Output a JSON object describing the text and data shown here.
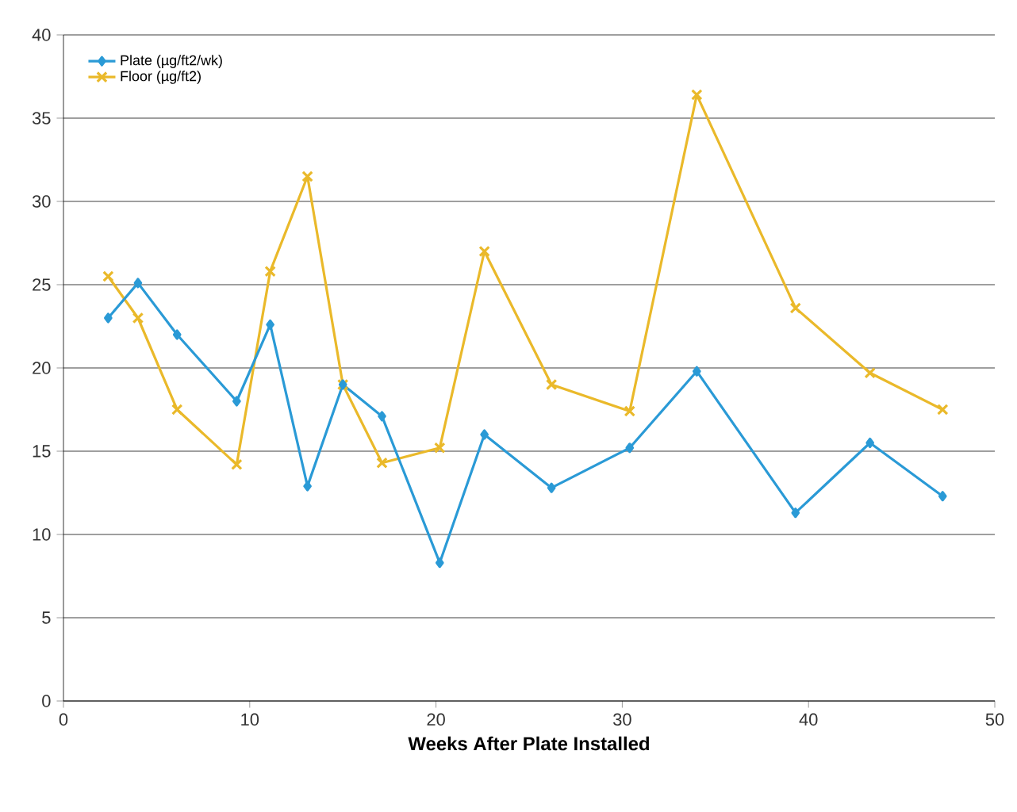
{
  "chart_data": {
    "type": "line",
    "xlabel": "Weeks  After Plate Installed",
    "xlim": [
      0,
      50
    ],
    "xticks": [
      0,
      10,
      20,
      30,
      40,
      50
    ],
    "ylim": [
      0,
      40
    ],
    "yticks": [
      0,
      5,
      10,
      15,
      20,
      25,
      30,
      35,
      40
    ],
    "grid": "y",
    "legend": "top left",
    "series": [
      {
        "name": "Plate (µg/ft2/wk)",
        "color": "#2a9ad6",
        "marker": "diamond",
        "x": [
          2.4,
          4.0,
          6.1,
          9.3,
          11.1,
          13.1,
          15.0,
          17.1,
          20.2,
          22.6,
          26.2,
          30.4,
          34.0,
          39.3,
          43.3,
          47.2
        ],
        "values": [
          23,
          25.1,
          22,
          18,
          22.6,
          12.9,
          19,
          17.1,
          8.3,
          16,
          12.8,
          15.2,
          19.8,
          11.3,
          15.5,
          12.3
        ]
      },
      {
        "name": "Floor (µg/ft2)",
        "color": "#eab92a",
        "marker": "cross",
        "x": [
          2.4,
          4.0,
          6.1,
          9.3,
          11.1,
          13.1,
          15.0,
          17.1,
          20.2,
          22.6,
          26.2,
          30.4,
          34.0,
          39.3,
          43.3,
          47.2
        ],
        "values": [
          25.5,
          23,
          17.5,
          14.2,
          25.8,
          31.5,
          19,
          14.3,
          15.2,
          27,
          19,
          17.4,
          36.4,
          23.6,
          19.7,
          17.5
        ]
      }
    ]
  }
}
